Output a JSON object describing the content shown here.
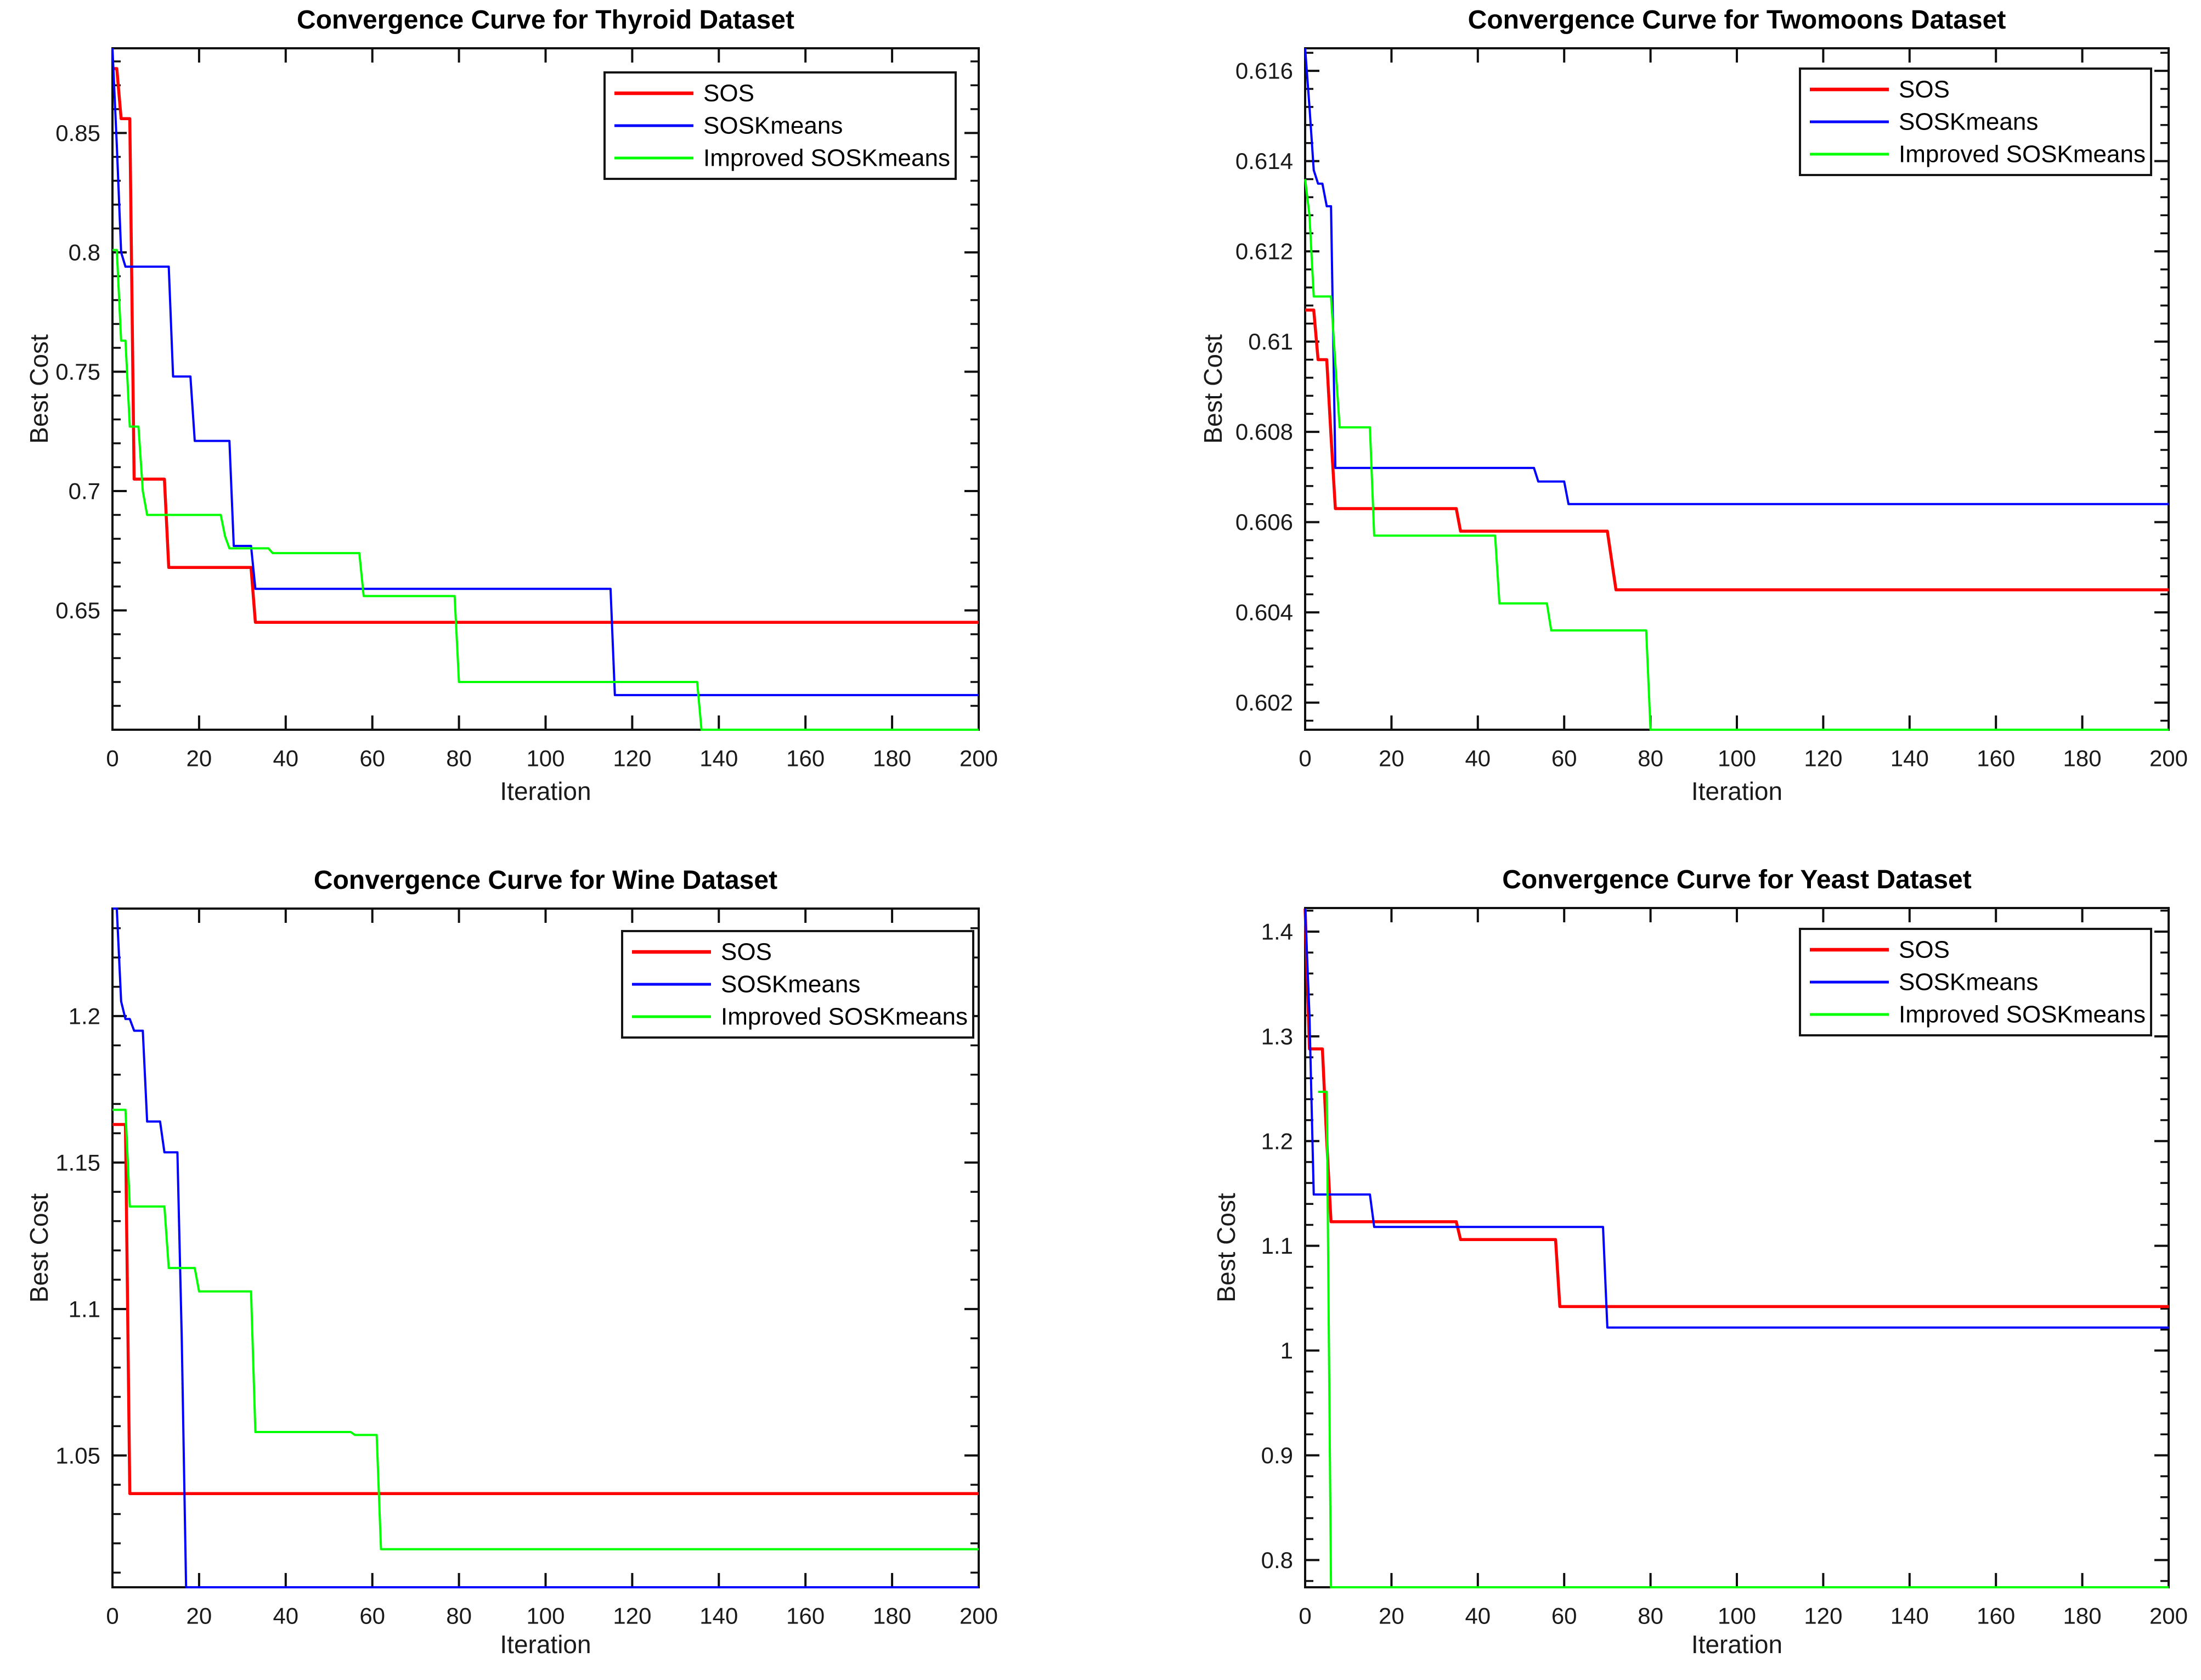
{
  "figure": {
    "background": "#ffffff",
    "text_color": "#1a1a1a",
    "axes_color": "#0f0f0f"
  },
  "legend": {
    "entries": [
      "SOS",
      "SOSKmeans",
      "Improved SOSKmeans"
    ],
    "position": "upper right",
    "border_color": "#141414",
    "background": "#ffffff"
  },
  "chart_data": [
    {
      "type": "line",
      "title": "Convergence Curve for Thyroid Dataset",
      "xlabel": "Iteration",
      "ylabel": "Best Cost",
      "grid": false,
      "legend_position": "upper right",
      "xlim": [
        0,
        200
      ],
      "ylim": [
        0.6,
        0.8855
      ],
      "x_ticks": [
        0,
        20,
        40,
        60,
        80,
        100,
        120,
        140,
        160,
        180,
        200
      ],
      "x_tick_labels": [
        "0",
        "20",
        "40",
        "60",
        "80",
        "100",
        "120",
        "140",
        "160",
        "180",
        "200"
      ],
      "y_ticks": [
        0.65,
        0.7,
        0.75,
        0.8,
        0.85
      ],
      "y_tick_labels": [
        "0.65",
        "0.7",
        "0.75",
        "0.8",
        "0.85"
      ],
      "y_minor_step": 0.01,
      "series": [
        {
          "name": "SOS",
          "color": "#FF0000",
          "line_width": 5.5,
          "points": [
            [
              0,
              0.877
            ],
            [
              1,
              0.877
            ],
            [
              2,
              0.856
            ],
            [
              4,
              0.856
            ],
            [
              5,
              0.705
            ],
            [
              12,
              0.705
            ],
            [
              13,
              0.668
            ],
            [
              32,
              0.668
            ],
            [
              33,
              0.645
            ],
            [
              200,
              0.645
            ]
          ]
        },
        {
          "name": "SOSKmeans",
          "color": "#0000FF",
          "line_width": 4,
          "points": [
            [
              0,
              0.8855
            ],
            [
              1,
              0.845
            ],
            [
              2,
              0.8
            ],
            [
              3,
              0.794
            ],
            [
              13,
              0.794
            ],
            [
              14,
              0.748
            ],
            [
              18,
              0.748
            ],
            [
              19,
              0.721
            ],
            [
              27,
              0.721
            ],
            [
              28,
              0.677
            ],
            [
              32,
              0.677
            ],
            [
              33,
              0.659
            ],
            [
              115,
              0.659
            ],
            [
              116,
              0.6145
            ],
            [
              200,
              0.6145
            ]
          ]
        },
        {
          "name": "Improved SOSKmeans",
          "color": "#00FF00",
          "line_width": 4,
          "points": [
            [
              0,
              0.801
            ],
            [
              1,
              0.801
            ],
            [
              2,
              0.763
            ],
            [
              3,
              0.763
            ],
            [
              4,
              0.727
            ],
            [
              6,
              0.727
            ],
            [
              7,
              0.7
            ],
            [
              8,
              0.69
            ],
            [
              25,
              0.69
            ],
            [
              26,
              0.681
            ],
            [
              27,
              0.676
            ],
            [
              36,
              0.676
            ],
            [
              37,
              0.674
            ],
            [
              57,
              0.674
            ],
            [
              58,
              0.656
            ],
            [
              79,
              0.656
            ],
            [
              80,
              0.62
            ],
            [
              135,
              0.62
            ],
            [
              136,
              0.6
            ],
            [
              200,
              0.6
            ]
          ]
        }
      ]
    },
    {
      "type": "line",
      "title": "Convergence Curve for Twomoons Dataset",
      "xlabel": "Iteration",
      "ylabel": "Best Cost",
      "grid": false,
      "legend_position": "upper right",
      "xlim": [
        0,
        200
      ],
      "ylim": [
        0.6014,
        0.6165
      ],
      "x_ticks": [
        0,
        20,
        40,
        60,
        80,
        100,
        120,
        140,
        160,
        180,
        200
      ],
      "x_tick_labels": [
        "0",
        "20",
        "40",
        "60",
        "80",
        "100",
        "120",
        "140",
        "160",
        "180",
        "200"
      ],
      "y_ticks": [
        0.602,
        0.604,
        0.606,
        0.608,
        0.61,
        0.612,
        0.614,
        0.616
      ],
      "y_tick_labels": [
        "0.602",
        "0.604",
        "0.606",
        "0.608",
        "0.61",
        "0.612",
        "0.614",
        "0.616"
      ],
      "y_minor_step": 0.0004,
      "series": [
        {
          "name": "SOS",
          "color": "#FF0000",
          "line_width": 5.5,
          "points": [
            [
              0,
              0.6107
            ],
            [
              2,
              0.6107
            ],
            [
              3,
              0.6096
            ],
            [
              5,
              0.6096
            ],
            [
              6,
              0.6079
            ],
            [
              7,
              0.6063
            ],
            [
              35,
              0.6063
            ],
            [
              36,
              0.6058
            ],
            [
              70,
              0.6058
            ],
            [
              72,
              0.6045
            ],
            [
              200,
              0.6045
            ]
          ]
        },
        {
          "name": "SOSKmeans",
          "color": "#0000FF",
          "line_width": 4,
          "points": [
            [
              0,
              0.6165
            ],
            [
              1,
              0.6152
            ],
            [
              2,
              0.6138
            ],
            [
              3,
              0.6135
            ],
            [
              4,
              0.6135
            ],
            [
              5,
              0.613
            ],
            [
              6,
              0.613
            ],
            [
              7,
              0.6072
            ],
            [
              53,
              0.6072
            ],
            [
              54,
              0.6069
            ],
            [
              60,
              0.6069
            ],
            [
              61,
              0.6064
            ],
            [
              200,
              0.6064
            ]
          ]
        },
        {
          "name": "Improved SOSKmeans",
          "color": "#00FF00",
          "line_width": 4,
          "points": [
            [
              0,
              0.6136
            ],
            [
              1,
              0.6128
            ],
            [
              2,
              0.611
            ],
            [
              6,
              0.611
            ],
            [
              7,
              0.6095
            ],
            [
              8,
              0.6081
            ],
            [
              15,
              0.6081
            ],
            [
              16,
              0.6057
            ],
            [
              44,
              0.6057
            ],
            [
              45,
              0.6042
            ],
            [
              56,
              0.6042
            ],
            [
              57,
              0.6036
            ],
            [
              79,
              0.6036
            ],
            [
              80,
              0.6014
            ],
            [
              200,
              0.6014
            ]
          ]
        }
      ]
    },
    {
      "type": "line",
      "title": "Convergence Curve for Wine Dataset",
      "xlabel": "Iteration",
      "ylabel": "Best Cost",
      "grid": false,
      "legend_position": "upper right",
      "xlim": [
        0,
        200
      ],
      "ylim": [
        1.005,
        1.2367
      ],
      "x_ticks": [
        0,
        20,
        40,
        60,
        80,
        100,
        120,
        140,
        160,
        180,
        200
      ],
      "x_tick_labels": [
        "0",
        "20",
        "40",
        "60",
        "80",
        "100",
        "120",
        "140",
        "160",
        "180",
        "200"
      ],
      "y_ticks": [
        1.05,
        1.1,
        1.15,
        1.2
      ],
      "y_tick_labels": [
        "1.05",
        "1.1",
        "1.15",
        "1.2"
      ],
      "y_minor_step": 0.01,
      "series": [
        {
          "name": "SOS",
          "color": "#FF0000",
          "line_width": 5.5,
          "points": [
            [
              0,
              1.163
            ],
            [
              3,
              1.163
            ],
            [
              4,
              1.037
            ],
            [
              200,
              1.037
            ]
          ]
        },
        {
          "name": "SOSKmeans",
          "color": "#0000FF",
          "line_width": 4,
          "points": [
            [
              0,
              1.2367
            ],
            [
              1,
              1.2367
            ],
            [
              2,
              1.205
            ],
            [
              3,
              1.199
            ],
            [
              4,
              1.199
            ],
            [
              5,
              1.195
            ],
            [
              7,
              1.195
            ],
            [
              8,
              1.164
            ],
            [
              11,
              1.164
            ],
            [
              12,
              1.1535
            ],
            [
              15,
              1.1535
            ],
            [
              16,
              1.09
            ],
            [
              17,
              1.005
            ],
            [
              200,
              1.005
            ]
          ]
        },
        {
          "name": "Improved SOSKmeans",
          "color": "#00FF00",
          "line_width": 4,
          "points": [
            [
              0,
              1.168
            ],
            [
              3,
              1.168
            ],
            [
              4,
              1.135
            ],
            [
              12,
              1.135
            ],
            [
              13,
              1.114
            ],
            [
              19,
              1.114
            ],
            [
              20,
              1.106
            ],
            [
              32,
              1.106
            ],
            [
              33,
              1.058
            ],
            [
              55,
              1.058
            ],
            [
              56,
              1.057
            ],
            [
              61,
              1.057
            ],
            [
              62,
              1.018
            ],
            [
              200,
              1.018
            ]
          ]
        }
      ]
    },
    {
      "type": "line",
      "title": "Convergence Curve for Yeast Dataset",
      "xlabel": "Iteration",
      "ylabel": "Best Cost",
      "grid": false,
      "legend_position": "upper right",
      "xlim": [
        0,
        200
      ],
      "ylim": [
        0.774,
        1.4225
      ],
      "x_ticks": [
        0,
        20,
        40,
        60,
        80,
        100,
        120,
        140,
        160,
        180,
        200
      ],
      "x_tick_labels": [
        "0",
        "20",
        "40",
        "60",
        "80",
        "100",
        "120",
        "140",
        "160",
        "180",
        "200"
      ],
      "y_ticks": [
        0.8,
        0.9,
        1,
        1.1,
        1.2,
        1.3,
        1.4
      ],
      "y_tick_labels": [
        "0.8",
        "0.9",
        "1",
        "1.1",
        "1.2",
        "1.3",
        "1.4"
      ],
      "y_minor_step": 0.02,
      "series": [
        {
          "name": "SOS",
          "color": "#FF0000",
          "line_width": 5.5,
          "points": [
            [
              0,
              1.422
            ],
            [
              1,
              1.288
            ],
            [
              4,
              1.288
            ],
            [
              5,
              1.2
            ],
            [
              6,
              1.123
            ],
            [
              35,
              1.123
            ],
            [
              36,
              1.106
            ],
            [
              58,
              1.106
            ],
            [
              59,
              1.042
            ],
            [
              200,
              1.042
            ]
          ]
        },
        {
          "name": "SOSKmeans",
          "color": "#0000FF",
          "line_width": 4,
          "points": [
            [
              0,
              1.422
            ],
            [
              1,
              1.32
            ],
            [
              2,
              1.149
            ],
            [
              15,
              1.149
            ],
            [
              16,
              1.118
            ],
            [
              69,
              1.118
            ],
            [
              70,
              1.022
            ],
            [
              200,
              1.022
            ]
          ]
        },
        {
          "name": "Improved SOSKmeans",
          "color": "#00FF00",
          "line_width": 4,
          "points": [
            [
              3,
              1.247
            ],
            [
              5,
              1.247
            ],
            [
              6,
              0.774
            ],
            [
              200,
              0.774
            ]
          ]
        }
      ]
    }
  ]
}
